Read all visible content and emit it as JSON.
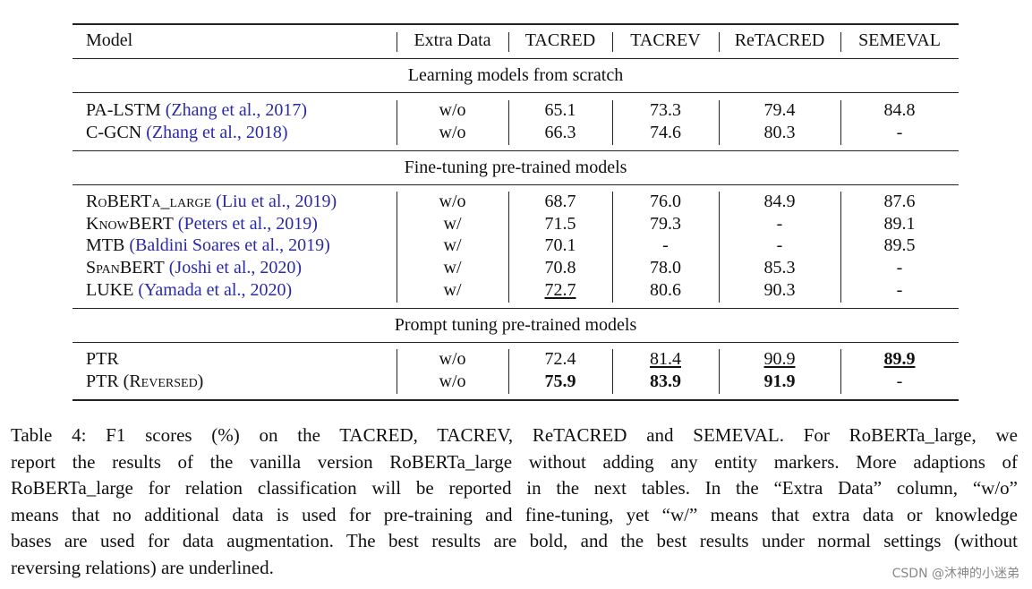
{
  "header": {
    "model": "Model",
    "extra_data": "Extra Data",
    "tacred": "TACRED",
    "tacrev": "TACREV",
    "retacred": "ReTACRED",
    "semeval": "SEMEVAL"
  },
  "sections": {
    "scratch": "Learning models from scratch",
    "finetune": "Fine-tuning pre-trained models",
    "prompt": "Prompt tuning pre-trained models"
  },
  "rows": {
    "palstm": {
      "model": "PA-LSTM",
      "cite": "(Zhang et al., 2017)",
      "extra": "w/o",
      "tacred": "65.1",
      "tacrev": "73.3",
      "retacred": "79.4",
      "semeval": "84.8"
    },
    "cgcn": {
      "model": "C-GCN",
      "cite": "(Zhang et al., 2018)",
      "extra": "w/o",
      "tacred": "66.3",
      "tacrev": "74.6",
      "retacred": "80.3",
      "semeval": "-"
    },
    "roberta": {
      "model": "RoBERTa_large",
      "cite": "(Liu et al., 2019)",
      "extra": "w/o",
      "tacred": "68.7",
      "tacrev": "76.0",
      "retacred": "84.9",
      "semeval": "87.6"
    },
    "knowbert": {
      "model": "KnowBERT",
      "cite": "(Peters et al., 2019)",
      "extra": "w/",
      "tacred": "71.5",
      "tacrev": "79.3",
      "retacred": "-",
      "semeval": "89.1"
    },
    "mtb": {
      "model": "MTB",
      "cite": "(Baldini Soares et al., 2019)",
      "extra": "w/",
      "tacred": "70.1",
      "tacrev": "-",
      "retacred": "-",
      "semeval": "89.5"
    },
    "spanbert": {
      "model": "SpanBERT",
      "cite": "(Joshi et al., 2020)",
      "extra": "w/",
      "tacred": "70.8",
      "tacrev": "78.0",
      "retacred": "85.3",
      "semeval": "-"
    },
    "luke": {
      "model": "LUKE",
      "cite": "(Yamada et al., 2020)",
      "extra": "w/",
      "tacred": "72.7",
      "tacrev": "80.6",
      "retacred": "90.3",
      "semeval": "-"
    },
    "ptr": {
      "model": "PTR",
      "extra": "w/o",
      "tacred": "72.4",
      "tacrev": "81.4",
      "retacred": "90.9",
      "semeval": "89.9"
    },
    "ptr_rev": {
      "model": "PTR (Reversed)",
      "extra": "w/o",
      "tacred": "75.9",
      "tacrev": "83.9",
      "retacred": "91.9",
      "semeval": "-"
    }
  },
  "caption": {
    "lines": [
      "Table 4: F1 scores (%) on the TACRED, TACREV, ReTACRED and SEMEVAL. For RoBERTa_large, we",
      "report the results of the vanilla version RoBERTa_large without adding any entity markers. More adaptions of",
      "RoBERTa_large for relation classification will be reported in the next tables. In the “Extra Data” column, “w/o”",
      "means that no additional data is used for pre-training and fine-tuning, yet “w/” means that extra data or knowledge",
      "bases are used for data augmentation. The best results are bold, and the best results under normal settings (without",
      "reversing relations) are underlined."
    ]
  },
  "watermark": "CSDN @沐神的小迷弟"
}
